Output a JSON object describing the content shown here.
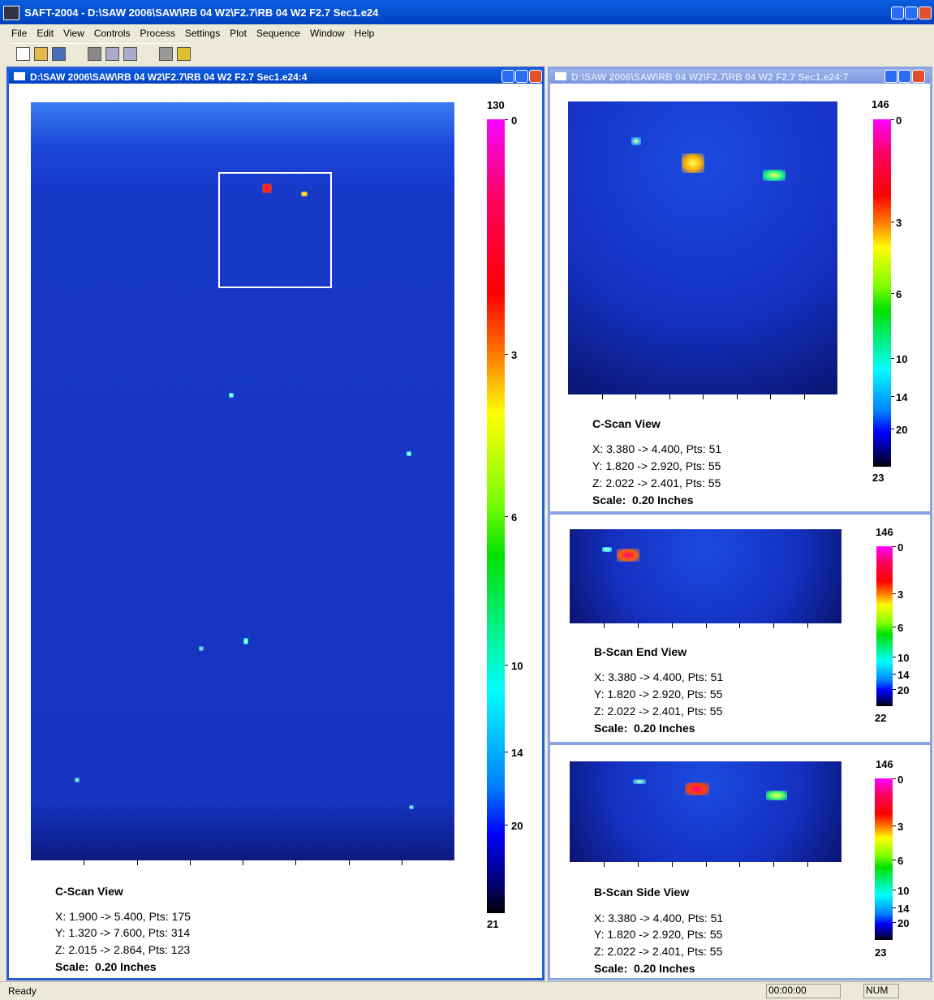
{
  "window": {
    "title": "SAFT-2004 - D:\\SAW 2006\\SAW\\RB 04 W2\\F2.7\\RB 04 W2 F2.7 Sec1.e24"
  },
  "menu": [
    "File",
    "Edit",
    "View",
    "Controls",
    "Process",
    "Settings",
    "Plot",
    "Sequence",
    "Window",
    "Help"
  ],
  "panels": [
    {
      "title": "D:\\SAW 2006\\SAW\\RB 04 W2\\F2.7\\RB 04 W2 F2.7 Sec1.e24:4",
      "views": [
        {
          "view": "C-Scan View",
          "colorbar": {
            "top": "130",
            "labels": [
              "0",
              "3",
              "6",
              "10",
              "14",
              "20"
            ],
            "bottom": "21"
          },
          "info": [
            "X: 1.900 -> 5.400, Pts: 175",
            "Y: 1.320 -> 7.600, Pts: 314",
            "Z: 2.015 -> 2.864, Pts: 123",
            "Scale:  0.20 Inches"
          ]
        }
      ]
    },
    {
      "title": "D:\\SAW 2006\\SAW\\RB 04 W2\\F2.7\\RB 04 W2 F2.7 Sec1.e24:7",
      "views": [
        {
          "view": "C-Scan View",
          "colorbar": {
            "top": "146",
            "labels": [
              "0",
              "3",
              "6",
              "10",
              "14",
              "20"
            ],
            "bottom": "23"
          },
          "info": [
            "X: 3.380 -> 4.400, Pts: 51",
            "Y: 1.820 -> 2.920, Pts: 55",
            "Z: 2.022 -> 2.401, Pts: 55",
            "Scale:  0.20 Inches"
          ]
        },
        {
          "view": "B-Scan End View",
          "colorbar": {
            "top": "146",
            "labels": [
              "0",
              "3",
              "6",
              "10",
              "14",
              "20"
            ],
            "bottom": "22"
          },
          "info": [
            "X: 3.380 -> 4.400, Pts: 51",
            "Y: 1.820 -> 2.920, Pts: 55",
            "Z: 2.022 -> 2.401, Pts: 55",
            "Scale:  0.20 Inches"
          ]
        },
        {
          "view": "B-Scan Side View",
          "colorbar": {
            "top": "146",
            "labels": [
              "0",
              "3",
              "6",
              "10",
              "14",
              "20"
            ],
            "bottom": "23"
          },
          "info": [
            "X: 3.380 -> 4.400, Pts: 51",
            "Y: 1.820 -> 2.920, Pts: 55",
            "Z: 2.022 -> 2.401, Pts: 55",
            "Scale:  0.20 Inches"
          ]
        }
      ]
    }
  ],
  "status": {
    "text": "Ready",
    "time": "00:00:00",
    "num": "NUM"
  }
}
